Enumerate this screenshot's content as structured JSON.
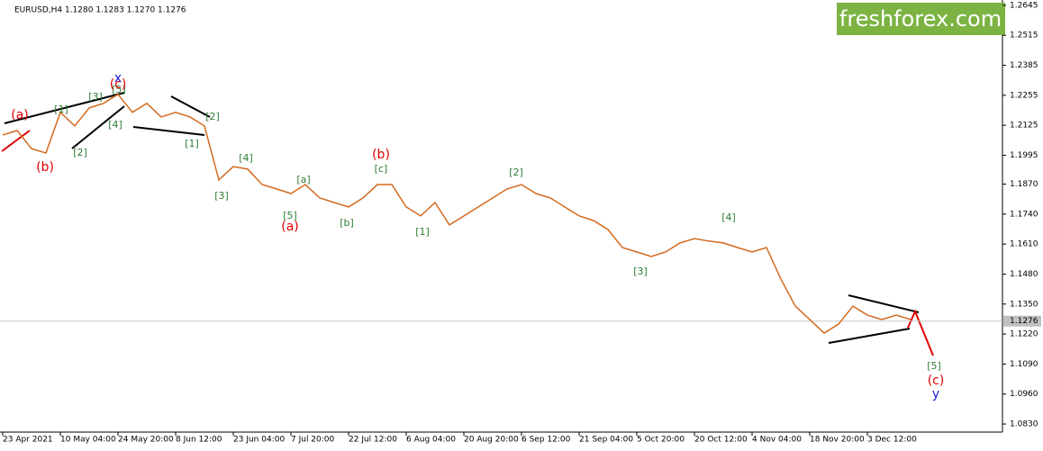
{
  "chart_data": {
    "type": "line",
    "title": "EURUSD,H4  1.1280 1.1283 1.1270 1.1276",
    "watermark": "freshforex.com",
    "color": "#d2691e",
    "categories": [
      "23 Apr 2021",
      null,
      null,
      null,
      "10 May 04:00",
      null,
      null,
      null,
      "24 May 20:00",
      null,
      null,
      null,
      "8 Jun 12:00",
      null,
      null,
      null,
      "23 Jun 04:00",
      null,
      null,
      null,
      "7 Jul 20:00",
      null,
      null,
      null,
      "22 Jul 12:00",
      null,
      null,
      null,
      "6 Aug 04:00",
      null,
      null,
      null,
      "20 Aug 20:00",
      null,
      null,
      null,
      "6 Sep 12:00",
      null,
      null,
      null,
      "21 Sep 04:00",
      null,
      null,
      null,
      "5 Oct 20:00",
      null,
      null,
      null,
      "20 Oct 12:00",
      null,
      null,
      null,
      "4 Nov 04:00",
      null,
      null,
      null,
      "18 Nov 20:00",
      null,
      null,
      null,
      "3 Dec 12:00",
      null,
      null,
      null
    ],
    "values": [
      1.2083,
      1.2102,
      1.2024,
      1.2005,
      1.2181,
      1.2122,
      1.22,
      1.222,
      1.2259,
      1.2181,
      1.222,
      1.2161,
      1.2181,
      1.2161,
      1.2122,
      1.1888,
      1.1946,
      1.1935,
      1.1868,
      1.1849,
      1.1829,
      1.1868,
      1.181,
      1.179,
      1.1771,
      1.181,
      1.1868,
      1.1868,
      1.1771,
      1.1732,
      1.179,
      1.1693,
      1.1732,
      1.1771,
      1.181,
      1.1849,
      1.1868,
      1.1829,
      1.181,
      1.1771,
      1.1732,
      1.1712,
      1.1673,
      1.1595,
      1.1576,
      1.1556,
      1.1576,
      1.1615,
      1.1634,
      1.1623,
      1.1615,
      1.1595,
      1.1576,
      1.1595,
      1.1458,
      1.1341,
      1.1283,
      1.1224,
      1.1263,
      1.1341,
      1.1302,
      1.1283,
      1.1302,
      1.1283
    ],
    "ylim": [
      1.0795,
      1.2668
    ],
    "yticks": [
      1.2645,
      1.2515,
      1.2385,
      1.2255,
      1.2125,
      1.1995,
      {
        "value": 1.187,
        "label": "1.1870"
      },
      {
        "value": 1.174,
        "label": "1.1740"
      },
      {
        "value": 1.161,
        "label": "1.1610"
      },
      {
        "value": 1.148,
        "label": "1.1480"
      },
      {
        "value": 1.135,
        "label": "1.1350"
      },
      {
        "value": 1.122,
        "label": "1.1220"
      },
      {
        "value": 1.109,
        "label": "1.1090"
      },
      {
        "value": 1.096,
        "label": "1.0960"
      },
      {
        "value": 1.083,
        "label": "1.0830"
      }
    ],
    "last_price": 1.1276,
    "annotations": [
      {
        "text": "(a)",
        "color": "#e00000"
      },
      {
        "text": "(b)",
        "color": "#e00000"
      },
      {
        "text": "[1]",
        "color": "#2e7d32"
      },
      {
        "text": "[2]",
        "color": "#2e7d32"
      },
      {
        "text": "[3]",
        "color": "#2e7d32"
      },
      {
        "text": "[4]",
        "color": "#2e7d32"
      },
      {
        "text": "[5]",
        "color": "#2e7d32"
      },
      {
        "text": "(c)",
        "color": "#e00000"
      },
      {
        "text": "x",
        "color": "#1a1adc"
      },
      {
        "text": "[1]",
        "color": "#2e7d32"
      },
      {
        "text": "[2]",
        "color": "#2e7d32"
      },
      {
        "text": "[3]",
        "color": "#2e7d32"
      },
      {
        "text": "[4]",
        "color": "#2e7d32"
      },
      {
        "text": "[5]",
        "color": "#2e7d32"
      },
      {
        "text": "(a)",
        "color": "#e00000"
      },
      {
        "text": "[a]",
        "color": "#2e7d32"
      },
      {
        "text": "[b]",
        "color": "#2e7d32"
      },
      {
        "text": "(b)",
        "color": "#e00000"
      },
      {
        "text": "[c]",
        "color": "#2e7d32"
      },
      {
        "text": "[1]",
        "color": "#2e7d32"
      },
      {
        "text": "[2]",
        "color": "#2e7d32"
      },
      {
        "text": "[3]",
        "color": "#2e7d32"
      },
      {
        "text": "[4]",
        "color": "#2e7d32"
      },
      {
        "text": "[5]",
        "color": "#2e7d32"
      },
      {
        "text": "(c)",
        "color": "#e00000"
      },
      {
        "text": "y",
        "color": "#1a1adc"
      }
    ]
  }
}
